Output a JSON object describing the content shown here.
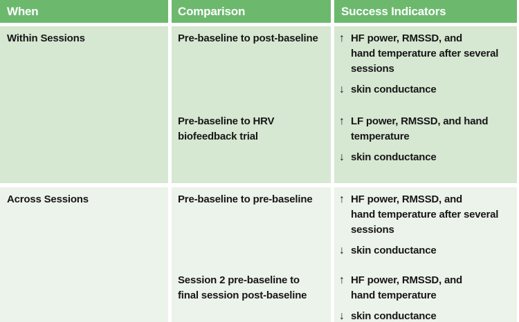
{
  "table": {
    "header": {
      "when": "When",
      "comparison": "Comparison",
      "indicators": "Success Indicators"
    },
    "groups": [
      {
        "when": "Within Sessions",
        "entries": [
          {
            "comparison": "Pre-baseline to post-baseline",
            "indicators": [
              {
                "arrow": "↑",
                "text": "HF power, RMSSD, and\nhand temperature after several\nsessions"
              },
              {
                "arrow": "↓",
                "text": "skin conductance"
              }
            ]
          },
          {
            "comparison": "Pre-baseline to HRV\nbiofeedback trial",
            "indicators": [
              {
                "arrow": "↑",
                "text": "LF power, RMSSD, and hand\ntemperature"
              },
              {
                "arrow": "↓",
                "text": "skin conductance"
              }
            ]
          }
        ]
      },
      {
        "when": "Across Sessions",
        "entries": [
          {
            "comparison": "Pre-baseline to pre-baseline",
            "indicators": [
              {
                "arrow": "↑",
                "text": "HF power, RMSSD, and\nhand temperature after several\nsessions"
              },
              {
                "arrow": "↓",
                "text": "skin conductance"
              }
            ]
          },
          {
            "comparison": "Session 2 pre-baseline to\nfinal session post-baseline",
            "indicators": [
              {
                "arrow": "↑",
                "text": "HF power, RMSSD, and\nhand temperature"
              },
              {
                "arrow": "↓",
                "text": "skin conductance"
              }
            ]
          }
        ]
      }
    ]
  },
  "colors": {
    "header_bg": "#6CB96E",
    "header_text": "#FFFFFF",
    "row_group_1_bg": "#D6E7D2",
    "row_group_2_bg": "#ECF3EA",
    "divider": "#FFFFFF",
    "body_text": "#161616"
  }
}
